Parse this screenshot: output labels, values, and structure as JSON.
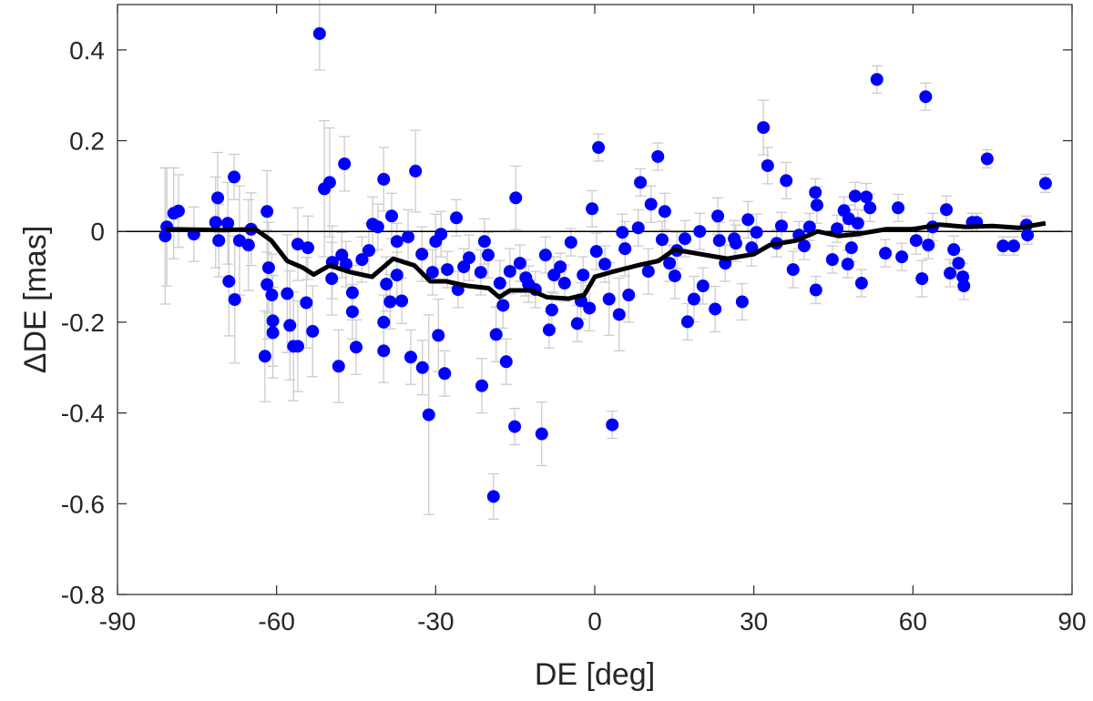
{
  "chart_data": {
    "type": "scatter",
    "title": "",
    "xlabel": "DE [deg]",
    "ylabel": "ΔDE [mas]",
    "xlim": [
      -90,
      90
    ],
    "ylim": [
      -0.8,
      0.5
    ],
    "xticks": [
      -90,
      -60,
      -30,
      0,
      30,
      60,
      90
    ],
    "yticks": [
      -0.8,
      -0.6,
      -0.4,
      -0.2,
      0,
      0.2,
      0.4
    ],
    "ytick_labels": [
      "-0.8",
      "-0.6",
      "-0.4",
      "-0.2",
      "0",
      "0.2",
      "0.4"
    ],
    "xtick_labels": [
      "-90",
      "-60",
      "-30",
      "0",
      "30",
      "60",
      "90"
    ],
    "grid": false,
    "colors": {
      "points": "#0000ff",
      "errorbars": "#cccccc",
      "trend": "#000000",
      "zero_line": "#000000"
    },
    "points_format": [
      "DE_deg",
      "dDE_mas",
      "error_mas"
    ],
    "points": [
      [
        -81,
        -0.01,
        0.15
      ],
      [
        -80.7,
        0.01,
        0.13
      ],
      [
        -79.4,
        0.04,
        0.1
      ],
      [
        -78.5,
        0.045,
        0.08
      ],
      [
        -75.6,
        -0.006,
        0.06
      ],
      [
        -71.1,
        0.074,
        0.1
      ],
      [
        -70.9,
        -0.02,
        0.08
      ],
      [
        -71.5,
        0.02,
        0.1
      ],
      [
        -69,
        -0.11,
        0.12
      ],
      [
        -68,
        0.12,
        0.05
      ],
      [
        -67.9,
        -0.15,
        0.14
      ],
      [
        -69.2,
        0.018,
        0.09
      ],
      [
        -67,
        -0.02,
        0.12
      ],
      [
        -65.3,
        -0.03,
        0.1
      ],
      [
        -64.8,
        0.005,
        0.08
      ],
      [
        -61.8,
        0.044,
        0.09
      ],
      [
        -62.2,
        -0.275,
        0.1
      ],
      [
        -61.5,
        -0.08,
        0.1
      ],
      [
        -61.8,
        -0.117,
        0.12
      ],
      [
        -60.9,
        -0.14,
        0.09
      ],
      [
        -60.7,
        -0.197,
        0.1
      ],
      [
        -60.7,
        -0.223,
        0.1
      ],
      [
        -58,
        -0.137,
        0.13
      ],
      [
        -57.5,
        -0.207,
        0.12
      ],
      [
        -56.8,
        -0.253,
        0.12
      ],
      [
        -56,
        -0.253,
        0.1
      ],
      [
        -56,
        -0.028,
        0.08
      ],
      [
        -54.1,
        -0.036,
        0.07
      ],
      [
        -53.2,
        -0.22,
        0.1
      ],
      [
        -54.4,
        -0.157,
        0.1
      ],
      [
        -51.9,
        0.436,
        0.08
      ],
      [
        -51,
        0.094,
        0.15
      ],
      [
        -50,
        0.108,
        0.12
      ],
      [
        -49.6,
        -0.104,
        0.08
      ],
      [
        -48.3,
        -0.297,
        0.08
      ],
      [
        -47.2,
        0.149,
        0.06
      ],
      [
        -47.7,
        -0.052,
        0.05
      ],
      [
        -46.9,
        -0.072,
        0.05
      ],
      [
        -45.7,
        -0.177,
        0.06
      ],
      [
        -45.7,
        -0.135,
        0.06
      ],
      [
        -45,
        -0.255,
        0.06
      ],
      [
        -43.9,
        -0.062,
        0.05
      ],
      [
        -41.9,
        0.016,
        0.06
      ],
      [
        -40.9,
        0.01,
        0.05
      ],
      [
        -39.8,
        0.115,
        0.07
      ],
      [
        -39.8,
        -0.2,
        0.06
      ],
      [
        -39.8,
        -0.263,
        0.07
      ],
      [
        -38.6,
        -0.155,
        0.06
      ],
      [
        -38.3,
        0.034,
        0.05
      ],
      [
        -37.3,
        -0.022,
        0.04
      ],
      [
        -37.3,
        -0.096,
        0.05
      ],
      [
        -36.4,
        -0.153,
        0.05
      ],
      [
        -34.7,
        -0.277,
        0.06
      ],
      [
        -33.8,
        0.133,
        0.09
      ],
      [
        -32.5,
        -0.3,
        0.06
      ],
      [
        -31.3,
        -0.404,
        0.22
      ],
      [
        -30.6,
        -0.09,
        0.05
      ],
      [
        -29.5,
        -0.229,
        0.08
      ],
      [
        -29,
        -0.006,
        0.05
      ],
      [
        -28.3,
        -0.313,
        0.05
      ],
      [
        -27.8,
        -0.084,
        0.04
      ],
      [
        -26.1,
        0.03,
        0.04
      ],
      [
        -25.8,
        -0.128,
        0.04
      ],
      [
        -24.7,
        -0.078,
        0.04
      ],
      [
        -21.3,
        -0.34,
        0.06
      ],
      [
        -20.8,
        -0.022,
        0.05
      ],
      [
        -20.1,
        -0.052,
        0.05
      ],
      [
        -19.1,
        -0.584,
        0.05
      ],
      [
        -18.6,
        -0.227,
        0.06
      ],
      [
        -17.3,
        -0.163,
        0.05
      ],
      [
        -16.7,
        -0.287,
        0.05
      ],
      [
        -15.1,
        -0.43,
        0.04
      ],
      [
        -14.9,
        0.074,
        0.07
      ],
      [
        -14.1,
        -0.07,
        0.04
      ],
      [
        -12.5,
        -0.116,
        0.04
      ],
      [
        -10,
        -0.446,
        0.07
      ],
      [
        -8.6,
        -0.217,
        0.04
      ],
      [
        -8.1,
        -0.173,
        0.04
      ],
      [
        -6.5,
        -0.078,
        0.03
      ],
      [
        -4.5,
        -0.024,
        0.03
      ],
      [
        -3.3,
        -0.203,
        0.04
      ],
      [
        -2.6,
        -0.153,
        0.04
      ],
      [
        -1,
        -0.169,
        0.05
      ],
      [
        -0.5,
        0.05,
        0.04
      ],
      [
        0.7,
        0.185,
        0.03
      ],
      [
        2.7,
        -0.149,
        0.08
      ],
      [
        3.3,
        -0.426,
        0.03
      ],
      [
        4.6,
        -0.183,
        0.08
      ],
      [
        5.7,
        -0.038,
        0.06
      ],
      [
        6.4,
        -0.14,
        0.06
      ],
      [
        8.6,
        0.108,
        0.03
      ],
      [
        10.1,
        -0.088,
        0.05
      ],
      [
        10.6,
        0.06,
        0.04
      ],
      [
        11.9,
        0.165,
        0.03
      ],
      [
        13.2,
        0.044,
        0.04
      ],
      [
        15.1,
        -0.098,
        0.05
      ],
      [
        17.5,
        -0.199,
        0.04
      ],
      [
        18.7,
        -0.149,
        0.05
      ],
      [
        20.4,
        -0.12,
        0.04
      ],
      [
        22.7,
        -0.171,
        0.05
      ],
      [
        23.2,
        0.034,
        0.04
      ],
      [
        26.3,
        -0.016,
        0.04
      ],
      [
        27.8,
        -0.155,
        0.04
      ],
      [
        28.9,
        0.026,
        0.04
      ],
      [
        31.8,
        0.229,
        0.06
      ],
      [
        32.6,
        0.145,
        0.04
      ],
      [
        36.1,
        0.112,
        0.04
      ],
      [
        37.4,
        -0.084,
        0.04
      ],
      [
        41.6,
        0.086,
        0.03
      ],
      [
        41.7,
        -0.129,
        0.03
      ],
      [
        41.9,
        0.058,
        0.04
      ],
      [
        45.7,
        0.006,
        0.03
      ],
      [
        48.4,
        -0.036,
        0.03
      ],
      [
        49.1,
        0.078,
        0.03
      ],
      [
        50.3,
        -0.114,
        0.03
      ],
      [
        51.9,
        0.052,
        0.03
      ],
      [
        53.2,
        0.335,
        0.03
      ],
      [
        54.8,
        -0.048,
        0.03
      ],
      [
        57.2,
        0.052,
        0.03
      ],
      [
        57.9,
        -0.056,
        0.03
      ],
      [
        61.7,
        -0.104,
        0.04
      ],
      [
        62.4,
        0.297,
        0.03
      ],
      [
        62.9,
        -0.03,
        0.03
      ],
      [
        66.3,
        0.048,
        0.03
      ],
      [
        67,
        -0.092,
        0.03
      ],
      [
        67.7,
        -0.04,
        0.03
      ],
      [
        68.6,
        -0.07,
        0.03
      ],
      [
        69.4,
        -0.1,
        0.03
      ],
      [
        69.6,
        -0.12,
        0.03
      ],
      [
        74,
        0.16,
        0.02
      ],
      [
        77,
        -0.032,
        0.02
      ],
      [
        79,
        -0.032,
        0.02
      ],
      [
        81.6,
        -0.008,
        0.02
      ],
      [
        81.4,
        0.014,
        0.02
      ],
      [
        85,
        0.106,
        0.02
      ],
      [
        60.6,
        -0.02,
        0.03
      ],
      [
        63.7,
        0.01,
        0.03
      ],
      [
        71.2,
        0.02,
        0.02
      ],
      [
        72,
        0.02,
        0.02
      ],
      [
        47.7,
        -0.072,
        0.03
      ],
      [
        44.8,
        -0.062,
        0.03
      ],
      [
        47,
        0.046,
        0.03
      ],
      [
        47.9,
        0.028,
        0.03
      ],
      [
        51.2,
        0.076,
        0.03
      ],
      [
        49.6,
        0.018,
        0.03
      ],
      [
        40.5,
        0.01,
        0.03
      ],
      [
        38.5,
        -0.008,
        0.03
      ],
      [
        39.5,
        -0.032,
        0.03
      ],
      [
        35.2,
        0.012,
        0.03
      ],
      [
        34.3,
        -0.026,
        0.03
      ],
      [
        30.5,
        -0.002,
        0.04
      ],
      [
        29.6,
        -0.036,
        0.04
      ],
      [
        26.6,
        -0.026,
        0.04
      ],
      [
        24.6,
        -0.07,
        0.04
      ],
      [
        23.5,
        -0.02,
        0.04
      ],
      [
        19.8,
        0,
        0.04
      ],
      [
        17,
        -0.016,
        0.04
      ],
      [
        15.5,
        -0.042,
        0.04
      ],
      [
        14.1,
        -0.07,
        0.04
      ],
      [
        12.7,
        -0.018,
        0.04
      ],
      [
        8.2,
        0.008,
        0.04
      ],
      [
        5.2,
        -0.002,
        0.04
      ],
      [
        1.9,
        -0.072,
        0.04
      ],
      [
        0.3,
        -0.044,
        0.04
      ],
      [
        -2.2,
        -0.096,
        0.04
      ],
      [
        -5.7,
        -0.114,
        0.04
      ],
      [
        -7.7,
        -0.096,
        0.04
      ],
      [
        -9.3,
        -0.052,
        0.04
      ],
      [
        -11.2,
        -0.128,
        0.04
      ],
      [
        -13,
        -0.102,
        0.04
      ],
      [
        -16,
        -0.088,
        0.05
      ],
      [
        -17.9,
        -0.114,
        0.05
      ],
      [
        -21.5,
        -0.09,
        0.05
      ],
      [
        -23.7,
        -0.058,
        0.05
      ],
      [
        -30,
        -0.022,
        0.06
      ],
      [
        -32.6,
        -0.05,
        0.06
      ],
      [
        -35.2,
        -0.012,
        0.06
      ],
      [
        -39.3,
        -0.116,
        0.06
      ],
      [
        -42.6,
        -0.042,
        0.06
      ],
      [
        -49.5,
        -0.068,
        0.08
      ]
    ],
    "trend": {
      "x": [
        -81,
        -70,
        -64,
        -61,
        -58,
        -55,
        -53,
        -50,
        -46,
        -42,
        -38,
        -34,
        -31,
        -28,
        -24,
        -20,
        -18,
        -16,
        -12,
        -9,
        -5,
        -2,
        0,
        3,
        8,
        12,
        15,
        20,
        25,
        30,
        33,
        38,
        42,
        46,
        50,
        55,
        60,
        65,
        70,
        75,
        80,
        85
      ],
      "y": [
        0.005,
        0.003,
        0.005,
        -0.02,
        -0.065,
        -0.08,
        -0.095,
        -0.075,
        -0.09,
        -0.1,
        -0.06,
        -0.075,
        -0.11,
        -0.11,
        -0.12,
        -0.125,
        -0.145,
        -0.13,
        -0.13,
        -0.145,
        -0.148,
        -0.14,
        -0.1,
        -0.09,
        -0.075,
        -0.065,
        -0.04,
        -0.05,
        -0.06,
        -0.05,
        -0.03,
        -0.02,
        0.0,
        -0.01,
        -0.005,
        0.005,
        0.005,
        0.015,
        0.01,
        0.012,
        0.008,
        0.018
      ]
    },
    "reference_line_y": 0
  }
}
